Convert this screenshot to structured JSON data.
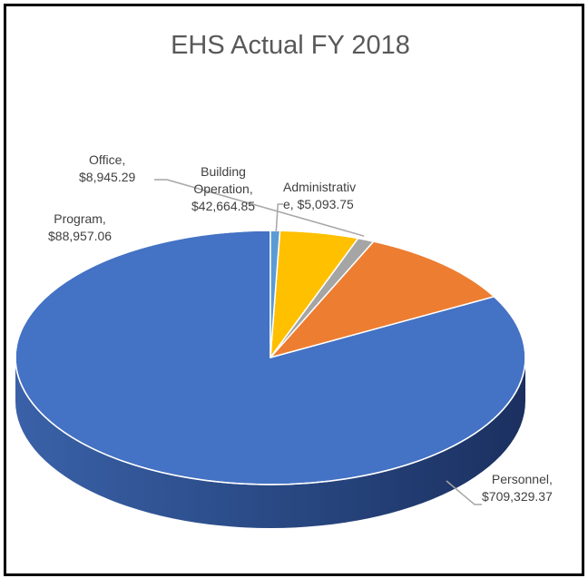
{
  "chart_data": {
    "type": "pie",
    "style": "3d",
    "title": "EHS Actual FY 2018",
    "legend": "none",
    "slices": [
      {
        "name": "Personnel",
        "value": 709329.37,
        "display": "$709,329.37",
        "color": "#4472C4"
      },
      {
        "name": "Program",
        "value": 88957.06,
        "display": "$88,957.06",
        "color": "#ED7D31"
      },
      {
        "name": "Office",
        "value": 8945.29,
        "display": "$8,945.29",
        "color": "#A5A5A5"
      },
      {
        "name": "Building Operation",
        "value": 42664.85,
        "display": "$42,664.85",
        "color": "#FFC000"
      },
      {
        "name": "Administrative",
        "value": 5093.75,
        "display": "$5,093.75",
        "color": "#5B9BD5"
      }
    ]
  },
  "labels": {
    "personnel": {
      "l1": "Personnel,",
      "l2": "$709,329.37"
    },
    "program": {
      "l1": "Program,",
      "l2": "$88,957.06"
    },
    "office": {
      "l1": "Office,",
      "l2": "$8,945.29"
    },
    "building": {
      "l1": "Building",
      "l2": "Operation,",
      "l3": "$42,664.85"
    },
    "administrative": {
      "l1": "Administrativ",
      "l2": "e, $5,093.75"
    }
  }
}
